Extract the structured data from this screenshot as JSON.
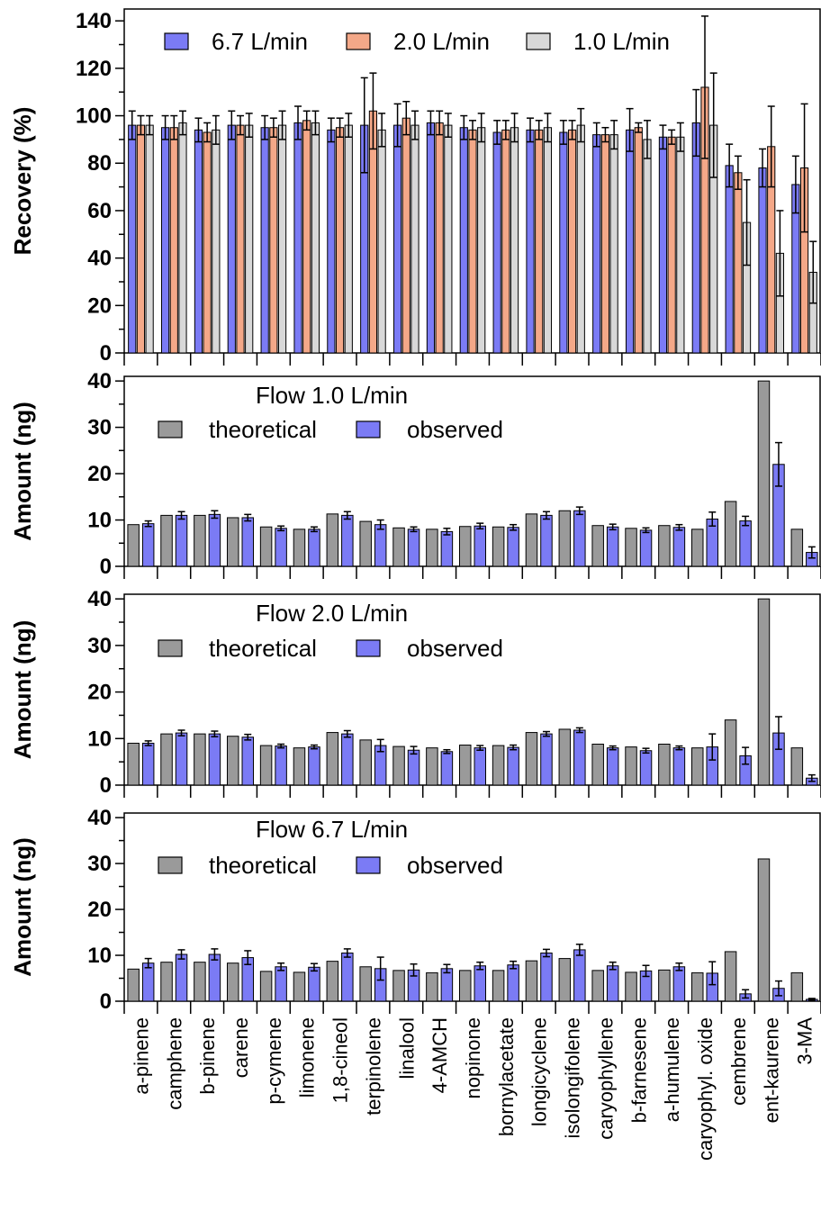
{
  "chart_data": [
    {
      "type": "bar",
      "ylabel": "Recovery (%)",
      "ylim": [
        0,
        145
      ],
      "yticks": [
        0,
        20,
        40,
        60,
        80,
        100,
        120,
        140
      ],
      "categories": [
        "a-pinene",
        "camphene",
        "b-pinene",
        "carene",
        "p-cymene",
        "limonene",
        "1,8-cineol",
        "terpinolene",
        "linalool",
        "4-AMCH",
        "nopinone",
        "bornylacetate",
        "longicyclene",
        "isolongifolene",
        "caryophyllene",
        "b-farnesene",
        "a-humulene",
        "caryophyl. oxide",
        "cembrene",
        "ent-kaurene",
        "3-MA"
      ],
      "legend_position": "top-left",
      "series": [
        {
          "name": "6.7 L/min",
          "color": "#7b7bf5",
          "values": [
            96,
            95,
            94,
            96,
            95,
            97,
            94,
            96,
            96,
            97,
            95,
            93,
            94,
            93,
            92,
            94,
            91,
            97,
            79,
            78,
            71
          ],
          "errors": [
            6,
            5,
            5,
            6,
            5,
            7,
            5,
            20,
            9,
            5,
            5,
            5,
            5,
            5,
            5,
            9,
            5,
            14,
            9,
            8,
            12
          ]
        },
        {
          "name": "2.0 L/min",
          "color": "#f4a888",
          "values": [
            96,
            95,
            93,
            96,
            95,
            98,
            95,
            102,
            99,
            97,
            94,
            94,
            94,
            94,
            92,
            95,
            91,
            112,
            76,
            87,
            78
          ],
          "errors": [
            4,
            5,
            4,
            4,
            4,
            4,
            4,
            16,
            7,
            5,
            4,
            4,
            4,
            4,
            3,
            2,
            3,
            30,
            7,
            17,
            27
          ]
        },
        {
          "name": "1.0 L/min",
          "color": "#d8d8d8",
          "values": [
            96,
            97,
            94,
            96,
            96,
            97,
            96,
            94,
            96,
            96,
            95,
            95,
            95,
            96,
            92,
            90,
            91,
            96,
            55,
            42,
            34
          ],
          "errors": [
            4,
            5,
            6,
            5,
            6,
            5,
            5,
            7,
            6,
            5,
            6,
            6,
            6,
            7,
            6,
            8,
            6,
            22,
            18,
            18,
            13
          ]
        }
      ]
    },
    {
      "type": "bar",
      "title": "Flow 1.0 L/min",
      "ylabel": "Amount (ng)",
      "ylim": [
        0,
        41
      ],
      "yticks": [
        0,
        10,
        20,
        30,
        40
      ],
      "legend_position": "top-left",
      "series": [
        {
          "name": "theoretical",
          "color": "#9a9a9a",
          "values": [
            9.0,
            11.0,
            11.0,
            10.5,
            8.5,
            8.0,
            11.3,
            9.7,
            8.3,
            8.0,
            8.6,
            8.5,
            11.3,
            12.0,
            8.8,
            8.2,
            8.8,
            8.0,
            14.0,
            40.0,
            8.0
          ],
          "errors": [
            0,
            0,
            0,
            0,
            0,
            0,
            0,
            0,
            0,
            0,
            0,
            0,
            0,
            0,
            0,
            0,
            0,
            0,
            0,
            0,
            0
          ]
        },
        {
          "name": "observed",
          "color": "#7b7bf5",
          "values": [
            9.2,
            11.0,
            11.2,
            10.5,
            8.2,
            8.0,
            11.0,
            9.0,
            8.0,
            7.5,
            8.7,
            8.4,
            11.0,
            12.0,
            8.5,
            7.8,
            8.4,
            10.2,
            9.8,
            22.0,
            3.0
          ],
          "errors": [
            0.6,
            0.8,
            0.8,
            0.7,
            0.5,
            0.5,
            0.8,
            1.0,
            0.5,
            0.7,
            0.6,
            0.6,
            0.8,
            0.8,
            0.6,
            0.5,
            0.6,
            1.5,
            1.0,
            4.7,
            1.2
          ]
        }
      ]
    },
    {
      "type": "bar",
      "title": "Flow 2.0 L/min",
      "ylabel": "Amount (ng)",
      "ylim": [
        0,
        41
      ],
      "yticks": [
        0,
        10,
        20,
        30,
        40
      ],
      "legend_position": "top-left",
      "series": [
        {
          "name": "theoretical",
          "color": "#9a9a9a",
          "values": [
            9.0,
            11.0,
            11.0,
            10.5,
            8.5,
            8.0,
            11.3,
            9.7,
            8.3,
            8.0,
            8.6,
            8.5,
            11.3,
            12.0,
            8.8,
            8.2,
            8.8,
            8.0,
            14.0,
            40.0,
            8.0
          ],
          "errors": [
            0,
            0,
            0,
            0,
            0,
            0,
            0,
            0,
            0,
            0,
            0,
            0,
            0,
            0,
            0,
            0,
            0,
            0,
            0,
            0,
            0
          ]
        },
        {
          "name": "observed",
          "color": "#7b7bf5",
          "values": [
            9.0,
            11.2,
            11.0,
            10.3,
            8.4,
            8.2,
            11.0,
            8.5,
            7.5,
            7.2,
            8.0,
            8.1,
            11.0,
            11.8,
            8.0,
            7.4,
            8.0,
            8.2,
            6.3,
            11.2,
            1.5
          ],
          "errors": [
            0.5,
            0.6,
            0.6,
            0.6,
            0.4,
            0.4,
            0.7,
            1.3,
            0.8,
            0.4,
            0.5,
            0.5,
            0.5,
            0.5,
            0.4,
            0.5,
            0.4,
            2.8,
            1.8,
            3.5,
            0.7
          ]
        }
      ]
    },
    {
      "type": "bar",
      "title": "Flow 6.7 L/min",
      "ylabel": "Amount (ng)",
      "ylim": [
        0,
        41
      ],
      "yticks": [
        0,
        10,
        20,
        30,
        40
      ],
      "legend_position": "top-left",
      "series": [
        {
          "name": "theoretical",
          "color": "#9a9a9a",
          "values": [
            7.0,
            8.5,
            8.5,
            8.3,
            6.5,
            6.3,
            8.7,
            7.5,
            6.7,
            6.2,
            6.7,
            6.7,
            8.8,
            9.3,
            6.7,
            6.3,
            6.8,
            6.2,
            10.8,
            31.0,
            6.2
          ],
          "errors": [
            0,
            0,
            0,
            0,
            0,
            0,
            0,
            0,
            0,
            0,
            0,
            0,
            0,
            0,
            0,
            0,
            0,
            0,
            0,
            0,
            0
          ]
        },
        {
          "name": "observed",
          "color": "#7b7bf5",
          "values": [
            8.3,
            10.2,
            10.2,
            9.5,
            7.5,
            7.4,
            10.5,
            7.1,
            6.8,
            7.1,
            7.7,
            7.9,
            10.5,
            11.2,
            7.7,
            6.6,
            7.5,
            6.1,
            1.6,
            2.8,
            0.4
          ],
          "errors": [
            1.0,
            1.0,
            1.2,
            1.5,
            0.8,
            0.8,
            0.9,
            2.5,
            1.3,
            0.9,
            0.8,
            0.8,
            0.8,
            1.2,
            0.8,
            1.2,
            0.8,
            2.5,
            0.9,
            1.6,
            0.2
          ]
        }
      ]
    }
  ]
}
